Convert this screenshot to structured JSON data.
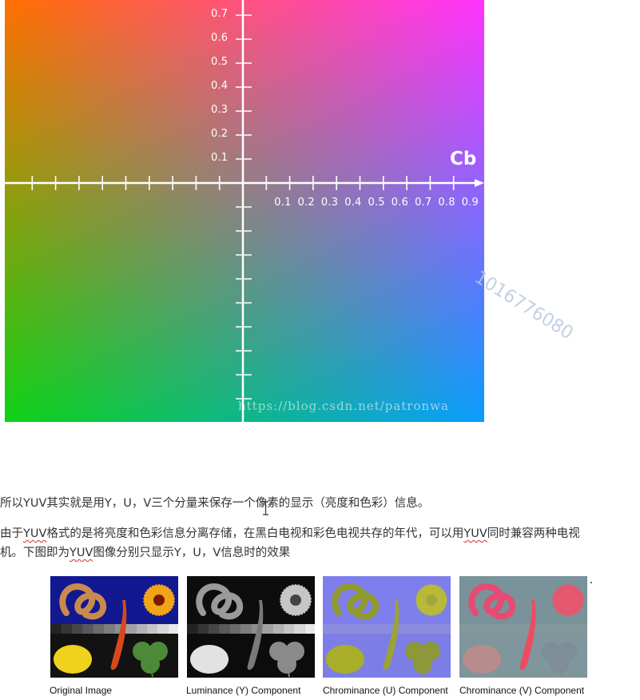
{
  "figure": {
    "axis_name": "Cb",
    "vertical_tick_labels": [
      "0.7",
      "0.6",
      "0.5",
      "0.4",
      "0.3",
      "0.2",
      "0.1"
    ],
    "horizontal_tick_labels": [
      "0.1",
      "0.2",
      "0.3",
      "0.4",
      "0.5",
      "0.6",
      "0.7",
      "0.8",
      "0.9"
    ],
    "url_watermark": "https://blog.csdn.net/patronwa",
    "side_watermark": "1016776080",
    "colors": {
      "top_left": "#ff7000",
      "top_right": "#ff33ff",
      "bottom_left": "#0fd215",
      "bottom_right": "#0a9dff",
      "axis": "#ffffff"
    }
  },
  "paragraphs": [
    {
      "segments": [
        {
          "text": "所以YUV其实就是用Y，U，V三个分量来保存一个像素的显示（亮度和色彩）信息。",
          "squiggle": false
        }
      ]
    },
    {
      "segments": [
        {
          "text": "由于",
          "squiggle": false
        },
        {
          "text": "YUV",
          "squiggle": true
        },
        {
          "text": "格式的是将亮度和色彩信息分离存储，在黑白电视和彩色电视共存的年代，可以用",
          "squiggle": false
        },
        {
          "text": "YUV",
          "squiggle": true
        },
        {
          "text": "同时兼容两种电视",
          "squiggle": false
        }
      ]
    },
    {
      "segments": [
        {
          "text": "机。下图即为",
          "squiggle": false
        },
        {
          "text": "YUV",
          "squiggle": true
        },
        {
          "text": "图像分别只显示Y，U，V信息时的效果",
          "squiggle": false
        }
      ]
    }
  ],
  "components": [
    {
      "caption": "Original Image",
      "mode": "original"
    },
    {
      "caption": "Luminance (Y) Component",
      "mode": "luma"
    },
    {
      "caption": "Chrominance (U) Component",
      "mode": "u"
    },
    {
      "caption": "Chrominance (V) Component",
      "mode": "v"
    }
  ]
}
